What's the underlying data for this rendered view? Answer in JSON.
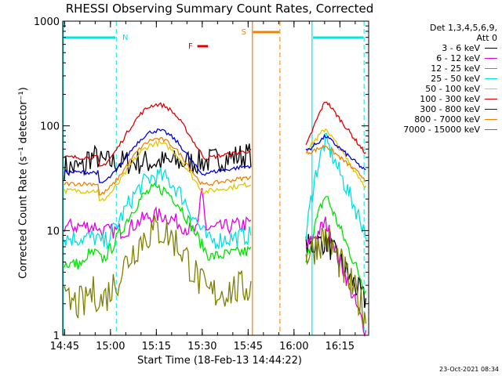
{
  "chart_data": {
    "type": "line",
    "title": "RHESSI Observing Summary Count Rates, Corrected",
    "xlabel": "Start Time (18-Feb-13 14:44:22)",
    "ylabel": "Corrected Count Rate (s⁻¹ detector⁻¹)",
    "yscale": "log",
    "ylim": [
      1,
      1000
    ],
    "xlim_minutes": [
      0,
      100
    ],
    "x_tick_labels": [
      "14:45",
      "15:00",
      "15:15",
      "15:30",
      "15:45",
      "16:00",
      "16:15"
    ],
    "x_tick_minutes": [
      0.6,
      15.6,
      30.6,
      45.6,
      60.6,
      75.6,
      90.6
    ],
    "y_tick_labels": [
      "1",
      "10",
      "100",
      "1000"
    ],
    "y_tick_values": [
      1,
      10,
      100,
      1000
    ],
    "legend_header": [
      "Det 1,3,4,5,6,9,",
      "Att 0"
    ],
    "timestamp": "23-Oct-2021 08:34",
    "annotations": [
      {
        "label": "N",
        "color": "#00e6e6",
        "kind": "night"
      },
      {
        "label": "S",
        "color": "#f08000",
        "kind": "saa"
      },
      {
        "label": "F",
        "color": "#e00000",
        "kind": "flare"
      }
    ],
    "gap_minutes": [
      62,
      79
    ],
    "series": [
      {
        "name": "3 - 6 keV",
        "color": "#000000"
      },
      {
        "name": "6 - 12 keV",
        "color": "#e000e0"
      },
      {
        "name": "12 - 25 keV",
        "color": "#00e000"
      },
      {
        "name": "25 - 50 keV",
        "color": "#00e0e0"
      },
      {
        "name": "50 - 100 keV",
        "color": "#e0c800"
      },
      {
        "name": "100 - 300 keV",
        "color": "#e00000"
      },
      {
        "name": "300 - 800 keV",
        "color": "#0000e0"
      },
      {
        "name": "800 - 7000 keV",
        "color": "#f08000"
      },
      {
        "name": "7000 - 15000 keV",
        "color": "#808000"
      }
    ]
  }
}
